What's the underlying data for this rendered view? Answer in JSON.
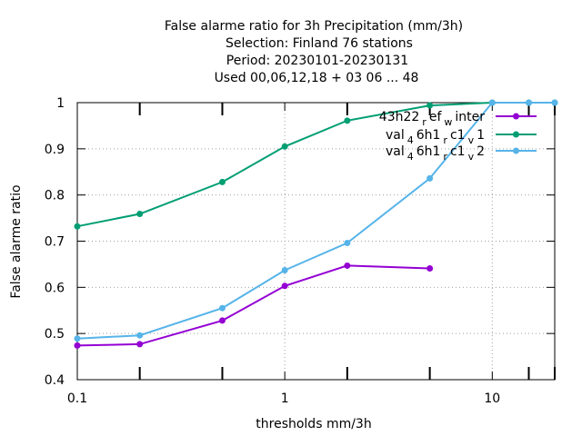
{
  "chart_data": {
    "type": "line",
    "title_lines": [
      "False alarme ratio  for 3h Precipitation (mm/3h)",
      "Selection: Finland     76 stations",
      "Period: 20230101-20230131",
      "Used  00,06,12,18  + 03 06 ... 48"
    ],
    "xlabel": "thresholds mm/3h",
    "ylabel": "False alarme ratio",
    "xscale": "log",
    "xlim": [
      0.1,
      20
    ],
    "ylim": [
      0.4,
      1.0
    ],
    "grid": true,
    "legend_position": "top-right",
    "x_ticks": [
      {
        "value": 0.1,
        "label": "0.1"
      },
      {
        "value": 1,
        "label": "1"
      },
      {
        "value": 10,
        "label": "10"
      }
    ],
    "x_minor_ticks": [
      0.2,
      0.5,
      2,
      5,
      15,
      20
    ],
    "y_ticks": [
      {
        "value": 0.4,
        "label": "0.4"
      },
      {
        "value": 0.5,
        "label": "0.5"
      },
      {
        "value": 0.6,
        "label": "0.6"
      },
      {
        "value": 0.7,
        "label": "0.7"
      },
      {
        "value": 0.8,
        "label": "0.8"
      },
      {
        "value": 0.9,
        "label": "0.9"
      },
      {
        "value": 1.0,
        "label": "1"
      }
    ],
    "series": [
      {
        "legend": {
          "base": "43h22",
          "sub": "r",
          "mid": "ef",
          "sub2": "w",
          "end": "inter"
        },
        "color": "#9400d3",
        "x": [
          0.1,
          0.2,
          0.5,
          1,
          2,
          5
        ],
        "values": [
          0.474,
          0.477,
          0.528,
          0.603,
          0.647,
          0.641
        ]
      },
      {
        "legend": {
          "base": "val",
          "sub": "4",
          "mid": "6h1",
          "sub2": "r",
          "end": "c1",
          "sub3": "v",
          "end2": "1"
        },
        "color": "#009e73",
        "x": [
          0.1,
          0.2,
          0.5,
          1,
          2,
          5,
          10,
          15,
          20
        ],
        "values": [
          0.732,
          0.759,
          0.828,
          0.905,
          0.961,
          0.994,
          1.0,
          1.0,
          1.0
        ]
      },
      {
        "legend": {
          "base": "val",
          "sub": "4",
          "mid": "6h1",
          "sub2": "r",
          "end": "c1",
          "sub3": "v",
          "end2": "2"
        },
        "color": "#56b4e9",
        "x": [
          0.1,
          0.2,
          0.5,
          1,
          2,
          5,
          10,
          15,
          20
        ],
        "values": [
          0.489,
          0.496,
          0.555,
          0.637,
          0.696,
          0.836,
          1.0,
          1.0,
          1.0
        ]
      }
    ]
  }
}
